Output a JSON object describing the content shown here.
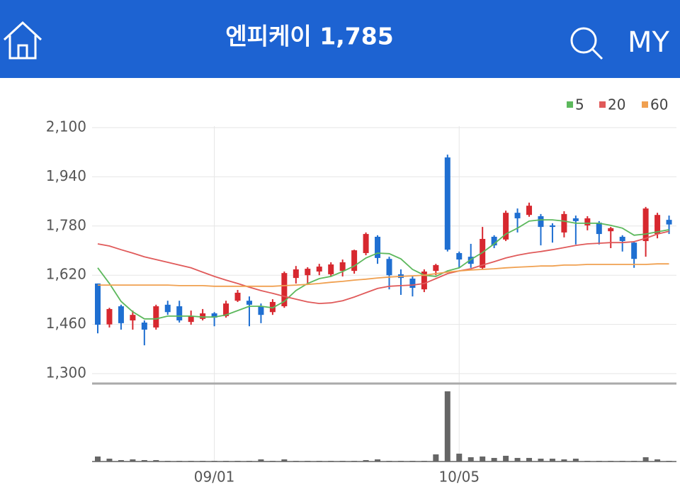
{
  "header": {
    "title": "엔피케이 1,785",
    "my": "MY"
  },
  "chart_data": {
    "type": "candlestick",
    "categories": [
      null,
      null,
      null,
      null,
      null,
      null,
      null,
      null,
      null,
      null,
      "09/01",
      null,
      null,
      null,
      null,
      null,
      null,
      null,
      null,
      null,
      null,
      null,
      null,
      null,
      null,
      null,
      null,
      null,
      null,
      null,
      null,
      "10/05",
      null,
      null,
      null,
      null,
      null,
      null,
      null,
      null,
      null,
      null,
      null,
      null,
      null,
      null,
      null,
      null,
      null,
      null
    ],
    "open": [
      1593,
      1460,
      1519,
      1473,
      1466,
      1450,
      1524,
      1519,
      1468,
      1478,
      1496,
      1487,
      1537,
      1537,
      1519,
      1500,
      1519,
      1611,
      1620,
      1632,
      1623,
      1634,
      1634,
      1692,
      1745,
      1673,
      1623,
      1609,
      1574,
      1634,
      2003,
      1692,
      1680,
      1644,
      1745,
      1736,
      1823,
      1816,
      1812,
      1782,
      1759,
      1805,
      1782,
      1791,
      1763,
      1745,
      1726,
      1731,
      1754,
      1800
    ],
    "high": [
      1593,
      1514,
      1524,
      1505,
      1473,
      1524,
      1537,
      1537,
      1505,
      1510,
      1500,
      1537,
      1572,
      1551,
      1528,
      1542,
      1632,
      1650,
      1646,
      1657,
      1662,
      1671,
      1703,
      1759,
      1750,
      1680,
      1639,
      1616,
      1639,
      1657,
      2012,
      1697,
      1722,
      1777,
      1750,
      1830,
      1837,
      1856,
      1819,
      1789,
      1828,
      1814,
      1812,
      1796,
      1777,
      1750,
      1731,
      1842,
      1823,
      1814
    ],
    "low": [
      1431,
      1450,
      1443,
      1443,
      1392,
      1443,
      1491,
      1466,
      1459,
      1473,
      1454,
      1482,
      1533,
      1454,
      1464,
      1491,
      1514,
      1593,
      1593,
      1620,
      1616,
      1616,
      1625,
      1685,
      1657,
      1574,
      1556,
      1551,
      1565,
      1620,
      1697,
      1644,
      1644,
      1639,
      1708,
      1731,
      1759,
      1810,
      1717,
      1726,
      1743,
      1720,
      1766,
      1720,
      1708,
      1697,
      1644,
      1680,
      1740,
      1754
    ],
    "close": [
      1459,
      1510,
      1464,
      1491,
      1443,
      1519,
      1500,
      1473,
      1487,
      1496,
      1482,
      1528,
      1563,
      1524,
      1491,
      1533,
      1627,
      1639,
      1641,
      1648,
      1655,
      1662,
      1701,
      1754,
      1676,
      1620,
      1611,
      1579,
      1632,
      1653,
      1703,
      1671,
      1657,
      1738,
      1717,
      1823,
      1805,
      1846,
      1777,
      1777,
      1819,
      1796,
      1805,
      1754,
      1773,
      1731,
      1673,
      1837,
      1816,
      1785
    ],
    "up_color": "#d7282f",
    "down_color": "#1f6fd1",
    "series": [
      {
        "name": "5",
        "color": "#5cb85c",
        "values": [
          1644,
          1593,
          1535,
          1501,
          1478,
          1478,
          1487,
          1487,
          1487,
          1484,
          1484,
          1491,
          1505,
          1519,
          1519,
          1514,
          1535,
          1570,
          1593,
          1609,
          1616,
          1632,
          1650,
          1676,
          1692,
          1690,
          1673,
          1639,
          1620,
          1616,
          1634,
          1644,
          1671,
          1694,
          1722,
          1754,
          1773,
          1796,
          1800,
          1800,
          1796,
          1789,
          1789,
          1789,
          1782,
          1773,
          1750,
          1754,
          1761,
          1768
        ]
      },
      {
        "name": "20",
        "color": "#e05a5a",
        "values": [
          1722,
          1715,
          1703,
          1692,
          1680,
          1671,
          1662,
          1653,
          1644,
          1630,
          1616,
          1604,
          1593,
          1581,
          1570,
          1561,
          1551,
          1542,
          1533,
          1528,
          1530,
          1537,
          1549,
          1563,
          1577,
          1584,
          1586,
          1588,
          1593,
          1609,
          1625,
          1634,
          1641,
          1653,
          1664,
          1676,
          1685,
          1692,
          1697,
          1703,
          1710,
          1717,
          1722,
          1724,
          1726,
          1726,
          1729,
          1740,
          1754,
          1763
        ]
      },
      {
        "name": "60",
        "color": "#f0a050",
        "values": [
          1588,
          1588,
          1588,
          1588,
          1588,
          1588,
          1588,
          1586,
          1586,
          1586,
          1584,
          1584,
          1584,
          1584,
          1584,
          1584,
          1586,
          1588,
          1590,
          1593,
          1597,
          1600,
          1604,
          1607,
          1611,
          1614,
          1616,
          1618,
          1620,
          1625,
          1630,
          1634,
          1637,
          1639,
          1641,
          1644,
          1646,
          1648,
          1650,
          1650,
          1653,
          1653,
          1655,
          1655,
          1655,
          1655,
          1655,
          1655,
          1657,
          1657
        ]
      }
    ],
    "volume": {
      "color": "#666666",
      "ylim": [
        0,
        100
      ],
      "values": [
        7,
        4,
        2,
        3,
        2,
        2,
        1,
        1,
        1,
        1,
        1,
        1,
        1,
        1,
        3,
        1,
        3,
        1,
        1,
        1,
        1,
        1,
        1,
        2,
        3,
        1,
        1,
        1,
        1,
        10,
        98,
        11,
        6,
        7,
        5,
        8,
        5,
        5,
        4,
        4,
        3,
        4,
        1,
        1,
        1,
        1,
        1,
        6,
        3,
        1
      ]
    },
    "ylim": [
      1300,
      2100
    ],
    "yticks": [
      {
        "value": 1300,
        "label": "1,300"
      },
      {
        "value": 1460,
        "label": "1,460"
      },
      {
        "value": 1620,
        "label": "1,620"
      },
      {
        "value": 1780,
        "label": "1,780"
      },
      {
        "value": 1940,
        "label": "1,940"
      },
      {
        "value": 2100,
        "label": "2,100"
      }
    ],
    "grid": true,
    "legend": "top-right"
  }
}
